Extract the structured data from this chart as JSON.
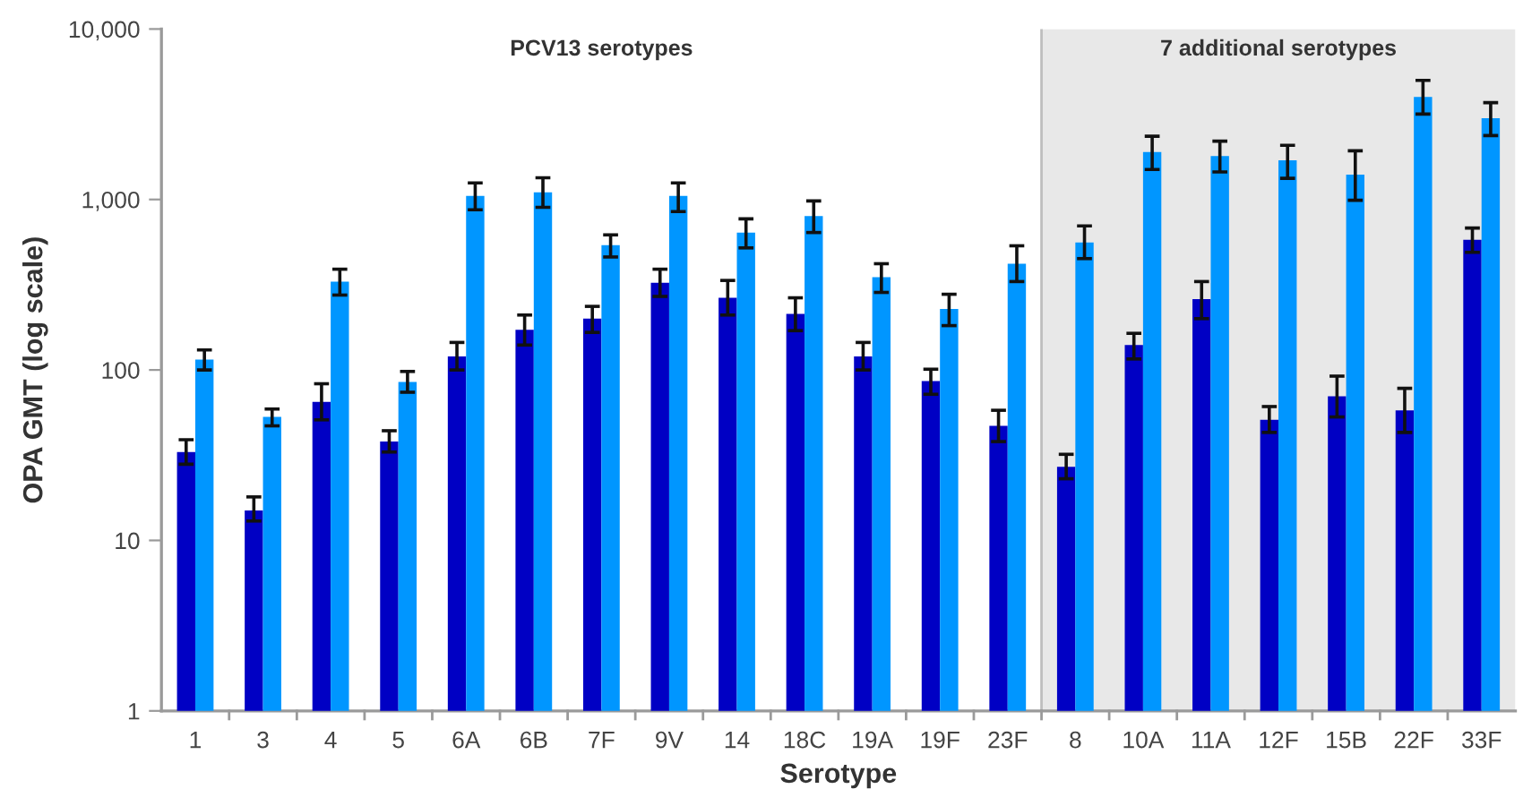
{
  "chart_data": {
    "type": "bar",
    "xlabel": "Serotype",
    "ylabel": "OPA GMT (log scale)",
    "categories": [
      "1",
      "3",
      "4",
      "5",
      "6A",
      "6B",
      "7F",
      "9V",
      "14",
      "18C",
      "19A",
      "19F",
      "23F",
      "8",
      "10A",
      "11A",
      "12F",
      "15B",
      "22F",
      "33F"
    ],
    "series": [
      {
        "color": "#0000c4",
        "values": [
          33,
          15,
          65,
          38,
          120,
          172,
          200,
          325,
          265,
          213,
          120,
          86,
          47,
          27,
          140,
          260,
          51,
          70,
          58,
          580
        ],
        "errors": [
          [
            28,
            39
          ],
          [
            13,
            18
          ],
          [
            51,
            83
          ],
          [
            33,
            44
          ],
          [
            100,
            145
          ],
          [
            140,
            210
          ],
          [
            166,
            236
          ],
          [
            270,
            390
          ],
          [
            210,
            335
          ],
          [
            170,
            265
          ],
          [
            100,
            145
          ],
          [
            72,
            101
          ],
          [
            38,
            58
          ],
          [
            23,
            32
          ],
          [
            116,
            164
          ],
          [
            200,
            330
          ],
          [
            43,
            61
          ],
          [
            53,
            92
          ],
          [
            43,
            78
          ],
          [
            490,
            680
          ]
        ]
      },
      {
        "color": "#0096ff",
        "values": [
          115,
          53,
          330,
          85,
          1050,
          1100,
          540,
          1050,
          640,
          800,
          350,
          228,
          420,
          560,
          1900,
          1800,
          1700,
          1400,
          4000,
          3000
        ],
        "errors": [
          [
            100,
            131
          ],
          [
            47,
            59
          ],
          [
            275,
            390
          ],
          [
            74,
            98
          ],
          [
            870,
            1250
          ],
          [
            900,
            1340
          ],
          [
            460,
            620
          ],
          [
            850,
            1250
          ],
          [
            520,
            770
          ],
          [
            640,
            980
          ],
          [
            285,
            420
          ],
          [
            182,
            278
          ],
          [
            330,
            535
          ],
          [
            450,
            700
          ],
          [
            1500,
            2350
          ],
          [
            1450,
            2200
          ],
          [
            1330,
            2080
          ],
          [
            990,
            1930
          ],
          [
            3170,
            5000
          ],
          [
            2370,
            3700
          ]
        ]
      }
    ],
    "log": true,
    "ylim": [
      1,
      10000
    ],
    "yticks": [
      1,
      10,
      100,
      {
        "value": 1000,
        "label": "1,000"
      },
      {
        "value": 10000,
        "label": "10,000"
      }
    ],
    "bands": [
      {
        "axis": "x",
        "from": "8",
        "to": "33F",
        "label": "7 additional serotypes",
        "color": "#e8e8e8"
      }
    ],
    "annotations": [
      "PCV13 serotypes"
    ],
    "grid": false
  }
}
